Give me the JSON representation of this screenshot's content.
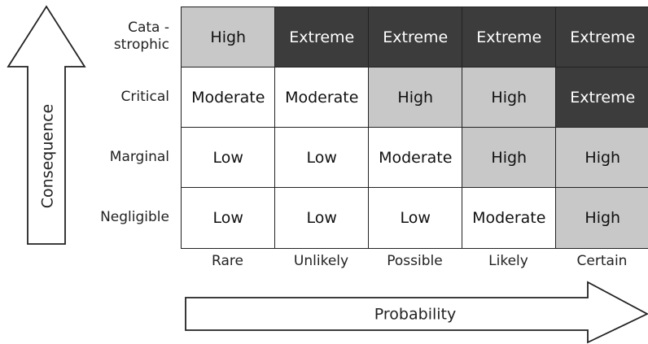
{
  "axes": {
    "y_label": "Consequence",
    "x_label": "Probability"
  },
  "columns": [
    "Rare",
    "Unlikely",
    "Possible",
    "Likely",
    "Certain"
  ],
  "rows": [
    {
      "label": [
        "Cata -",
        "strophic"
      ],
      "cells": [
        "High",
        "Extreme",
        "Extreme",
        "Extreme",
        "Extreme"
      ]
    },
    {
      "label": [
        "Critical"
      ],
      "cells": [
        "Moderate",
        "Moderate",
        "High",
        "High",
        "Extreme"
      ]
    },
    {
      "label": [
        "Marginal"
      ],
      "cells": [
        "Low",
        "Low",
        "Moderate",
        "High",
        "High"
      ]
    },
    {
      "label": [
        "Negligible"
      ],
      "cells": [
        "Low",
        "Low",
        "Low",
        "Moderate",
        "High"
      ]
    }
  ],
  "level_colors": {
    "Low": "#ffffff",
    "Moderate": "#ffffff",
    "High": "#c8c8c8",
    "Extreme": "#3c3c3c"
  }
}
